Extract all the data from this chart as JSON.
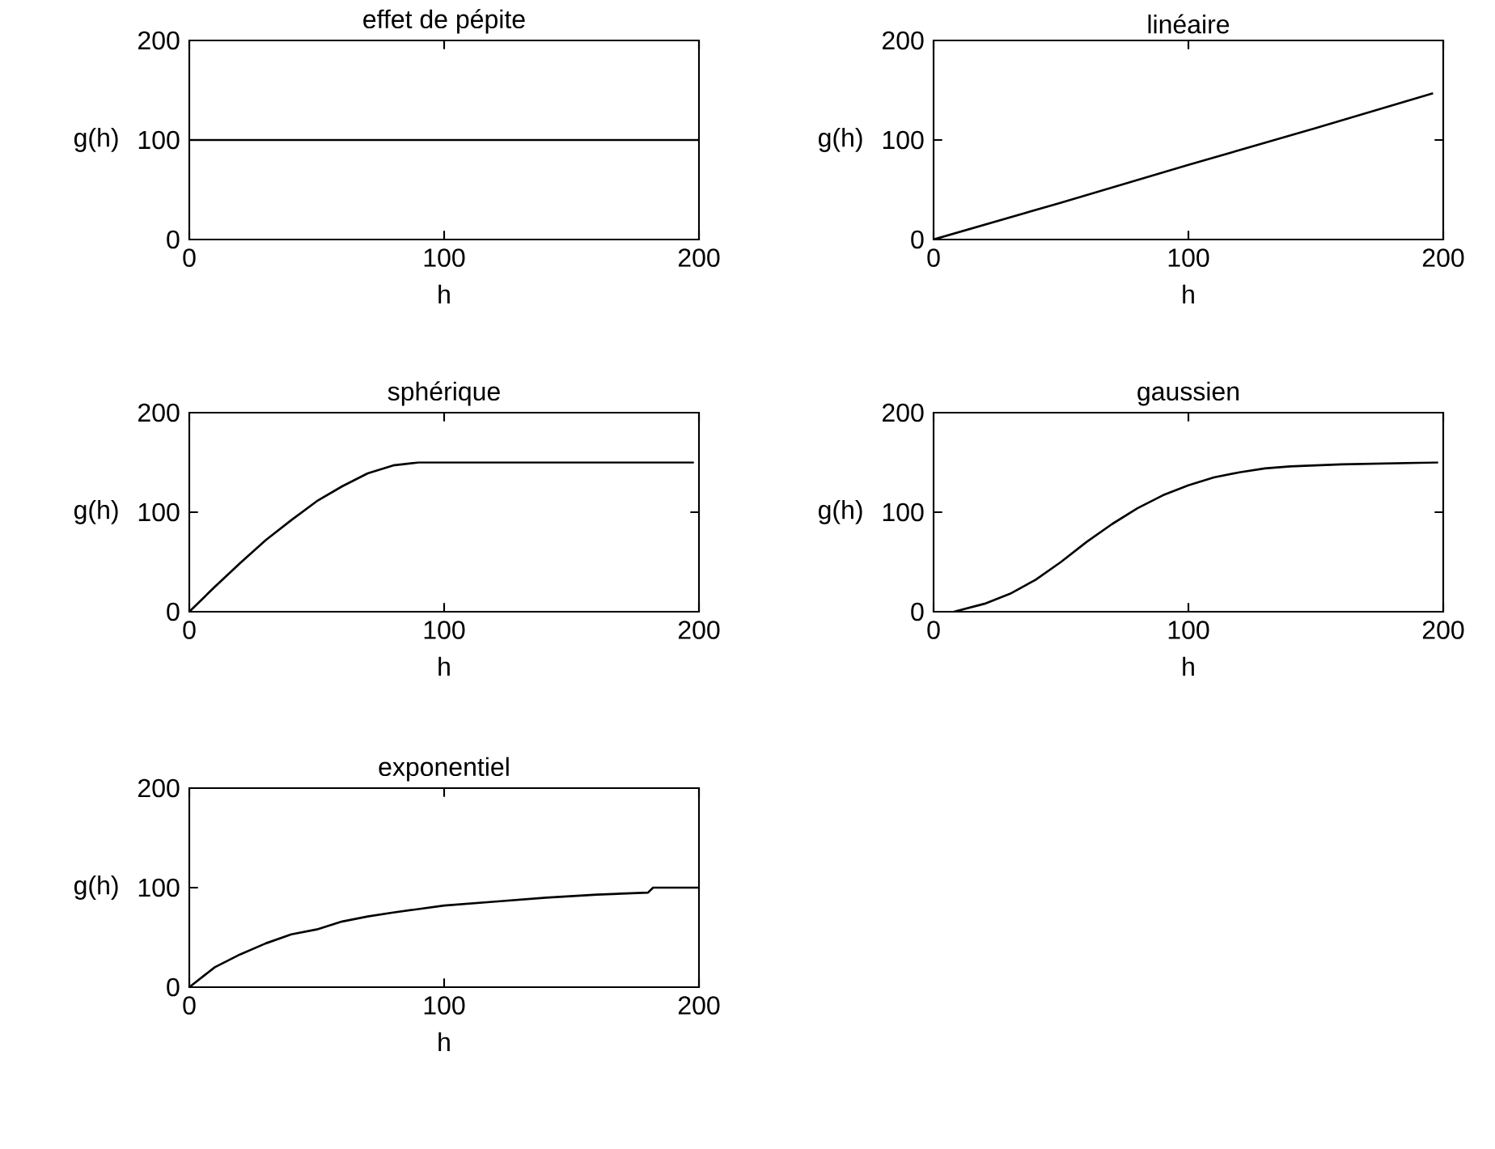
{
  "chart_data": [
    {
      "type": "line",
      "title": "effet de pépite",
      "xlabel": "h",
      "ylabel": "g(h)",
      "x": [
        0,
        200
      ],
      "values": [
        100,
        100
      ],
      "color": "#000000",
      "xlim": [
        0,
        200
      ],
      "ylim": [
        0,
        200
      ],
      "xticks": [
        0,
        100,
        200
      ],
      "yticks": [
        0,
        100,
        200
      ]
    },
    {
      "type": "line",
      "title": "linéaire",
      "xlabel": "h",
      "ylabel": "g(h)",
      "x": [
        0,
        50,
        100,
        150,
        196
      ],
      "values": [
        0,
        37,
        75,
        112,
        147
      ],
      "color": "#000000",
      "xlim": [
        0,
        200
      ],
      "ylim": [
        0,
        200
      ],
      "xticks": [
        0,
        100,
        200
      ],
      "yticks": [
        0,
        100,
        200
      ]
    },
    {
      "type": "line",
      "title": "sphérique",
      "xlabel": "h",
      "ylabel": "g(h)",
      "x": [
        0,
        10,
        20,
        30,
        40,
        50,
        60,
        70,
        80,
        90,
        198
      ],
      "values": [
        0,
        25,
        49,
        72,
        92,
        111,
        126,
        139,
        147,
        150,
        150
      ],
      "color": "#000000",
      "xlim": [
        0,
        200
      ],
      "ylim": [
        0,
        200
      ],
      "xticks": [
        0,
        100,
        200
      ],
      "yticks": [
        0,
        100,
        200
      ]
    },
    {
      "type": "line",
      "title": "gaussien",
      "xlabel": "h",
      "ylabel": "g(h)",
      "x": [
        8,
        20,
        30,
        40,
        50,
        60,
        70,
        80,
        90,
        100,
        110,
        120,
        130,
        140,
        160,
        198
      ],
      "values": [
        0,
        8,
        18,
        32,
        50,
        70,
        88,
        104,
        117,
        127,
        135,
        140,
        144,
        146,
        148,
        150
      ],
      "color": "#000000",
      "xlim": [
        0,
        200
      ],
      "ylim": [
        0,
        200
      ],
      "xticks": [
        0,
        100,
        200
      ],
      "yticks": [
        0,
        100,
        200
      ]
    },
    {
      "type": "line",
      "title": "exponentiel",
      "xlabel": "h",
      "ylabel": "g(h)",
      "x": [
        0,
        10,
        20,
        30,
        40,
        50,
        60,
        70,
        80,
        100,
        120,
        140,
        160,
        180,
        182,
        200
      ],
      "values": [
        0,
        20,
        33,
        44,
        53,
        58,
        66,
        71,
        75,
        82,
        86,
        90,
        93,
        95,
        100,
        100
      ],
      "color": "#000000",
      "xlim": [
        0,
        200
      ],
      "ylim": [
        0,
        200
      ],
      "xticks": [
        0,
        100,
        200
      ],
      "yticks": [
        0,
        100,
        200
      ]
    }
  ]
}
